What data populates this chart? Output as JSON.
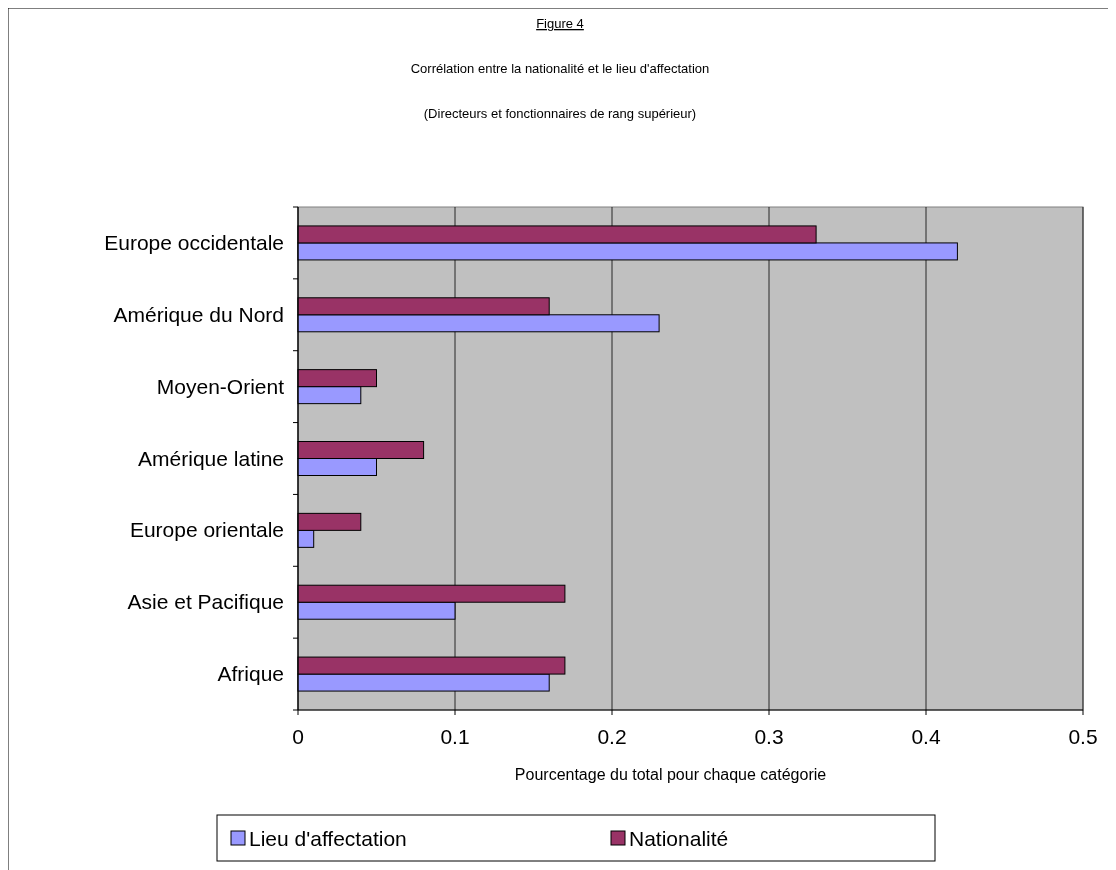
{
  "chart_data": {
    "type": "bar",
    "orientation": "horizontal",
    "title": "Figure 4",
    "subtitle": "Corrélation entre la nationalité et le lieu d'affectation",
    "annotations": [
      "(Directeurs et fonctionnaires de rang supérieur)"
    ],
    "xlabel": "Pourcentage du total pour chaque catégorie",
    "categories": [
      "Europe occidentale",
      "Amérique du Nord",
      "Moyen-Orient",
      "Amérique latine",
      "Europe orientale",
      "Asie et Pacifique",
      "Afrique"
    ],
    "series": [
      {
        "name": "Lieu d'affectation",
        "color": "#9999ff",
        "values": [
          0.42,
          0.23,
          0.04,
          0.05,
          0.01,
          0.1,
          0.16
        ]
      },
      {
        "name": "Nationalité",
        "color": "#993366",
        "values": [
          0.33,
          0.16,
          0.05,
          0.08,
          0.04,
          0.17,
          0.17
        ]
      }
    ],
    "xlim": [
      0,
      0.5
    ],
    "xticks": [
      0,
      0.1,
      0.2,
      0.3,
      0.4,
      0.5
    ],
    "grid": "x",
    "legend": "bottom"
  }
}
